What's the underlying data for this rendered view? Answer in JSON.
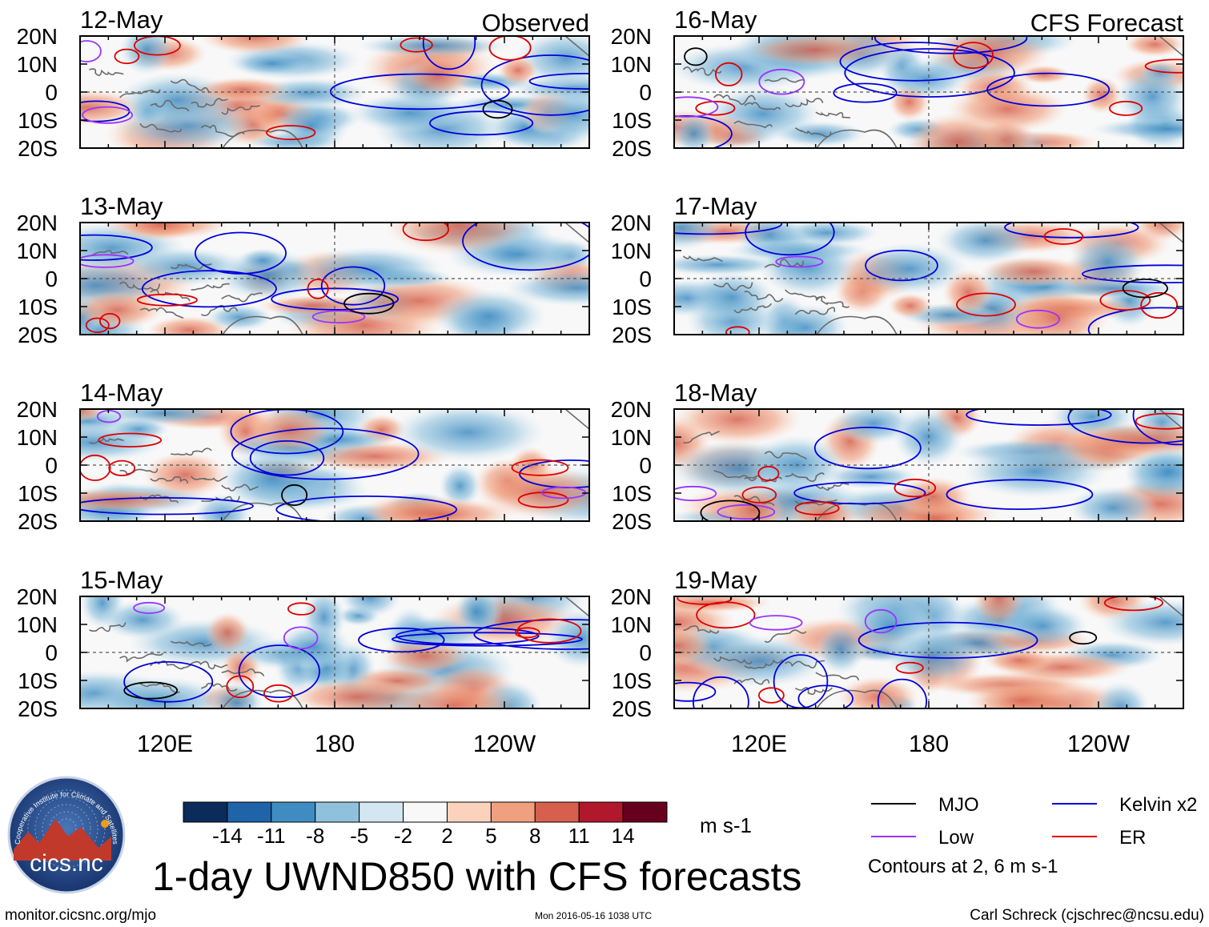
{
  "chart_data": {
    "type": "heatmap",
    "title": "1-day UWND850 with CFS forecasts",
    "variable": "UWND850",
    "units": "m s-1",
    "panels_observed_label": "Observed",
    "panels_forecast_label": "CFS Forecast",
    "panels": [
      {
        "date": "12-May",
        "kind": "observed"
      },
      {
        "date": "13-May",
        "kind": "observed"
      },
      {
        "date": "14-May",
        "kind": "observed"
      },
      {
        "date": "15-May",
        "kind": "observed"
      },
      {
        "date": "16-May",
        "kind": "forecast"
      },
      {
        "date": "17-May",
        "kind": "forecast"
      },
      {
        "date": "18-May",
        "kind": "forecast"
      },
      {
        "date": "19-May",
        "kind": "forecast"
      }
    ],
    "y_ticks": [
      "20N",
      "10N",
      "0",
      "10S",
      "20S"
    ],
    "y_values": [
      20,
      10,
      0,
      -10,
      -20
    ],
    "ylim": [
      -20,
      20
    ],
    "x_ticks": [
      "120E",
      "180",
      "120W"
    ],
    "x_values": [
      120,
      180,
      240
    ],
    "xlim": [
      90,
      270
    ],
    "colorbar": {
      "ticks": [
        "-14",
        "-11",
        "-8",
        "-5",
        "-2",
        "2",
        "5",
        "8",
        "11",
        "14"
      ],
      "colors": [
        "#0b2b5a",
        "#1f63a8",
        "#3f8cc3",
        "#8fc1dd",
        "#d3e6f1",
        "#f8f8f8",
        "#fbd3bd",
        "#f0a07e",
        "#d6604d",
        "#b2182b",
        "#67001f"
      ]
    },
    "legend": [
      {
        "label": "MJO",
        "color": "#000000"
      },
      {
        "label": "Kelvin x2",
        "color": "#0000dd"
      },
      {
        "label": "Low",
        "color": "#9933ff"
      },
      {
        "label": "ER",
        "color": "#dd0000"
      }
    ],
    "contours_note": "Contours at 2, 6 m s-1"
  },
  "footer": {
    "site": "monitor.cicsnc.org/mjo",
    "timestamp": "Mon 2016-05-16 1038 UTC",
    "author": "Carl Schreck (cjschrec@ncsu.edu)"
  },
  "logo": {
    "name": "cics.nc",
    "ring_text": "Cooperative Institute for Climate and Satellites"
  }
}
